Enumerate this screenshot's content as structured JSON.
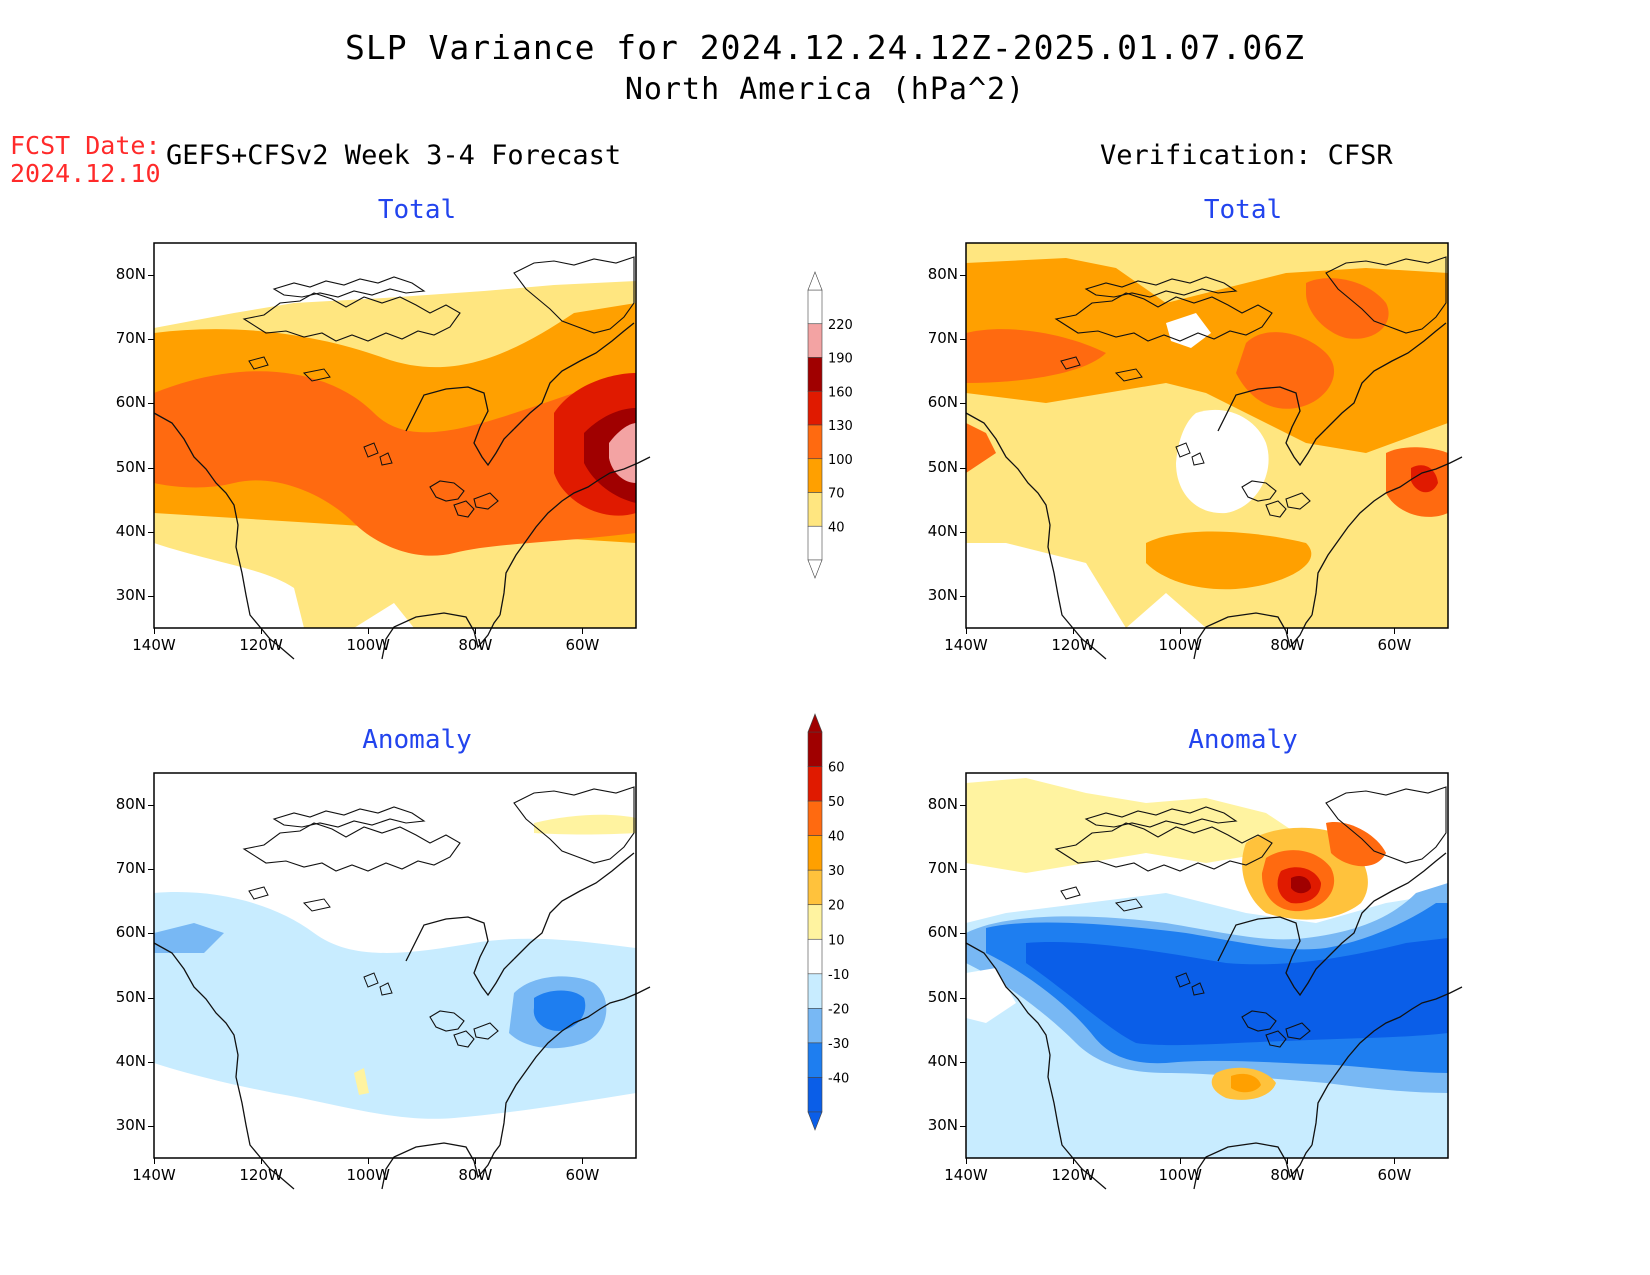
{
  "header": {
    "title": "SLP Variance for 2024.12.24.12Z-2025.01.07.06Z",
    "subtitle": "North America (hPa^2)",
    "fcst_date_label": "FCST Date:",
    "fcst_date_value": "2024.12.10",
    "left_column_title": "GEFS+CFSv2 Week 3-4 Forecast",
    "right_column_title": "Verification: CFSR"
  },
  "panels": {
    "forecast_total": {
      "title": "Total"
    },
    "verif_total": {
      "title": "Total"
    },
    "forecast_anomaly": {
      "title": "Anomaly"
    },
    "verif_anomaly": {
      "title": "Anomaly"
    }
  },
  "axes": {
    "lon_labels": [
      "140W",
      "120W",
      "100W",
      "80W",
      "60W"
    ],
    "lat_labels": [
      "80N",
      "70N",
      "60N",
      "50N",
      "40N",
      "30N"
    ],
    "lon_range": [
      -140,
      -50
    ],
    "lat_range": [
      25,
      85
    ]
  },
  "colorbars": {
    "total": {
      "levels": [
        "40",
        "70",
        "100",
        "130",
        "160",
        "190",
        "220"
      ],
      "colors": [
        "#ffffff",
        "#ffe680",
        "#ffa000",
        "#ff6a10",
        "#e01a00",
        "#a00000",
        "#f3a3a3",
        "#ffffff"
      ]
    },
    "anomaly": {
      "levels": [
        "-40",
        "-30",
        "-20",
        "-10",
        "10",
        "20",
        "30",
        "40",
        "50",
        "60"
      ],
      "colors": [
        "#0a5ee8",
        "#1e7ef0",
        "#78b8f4",
        "#c8ecff",
        "#ffffff",
        "#fff3a0",
        "#ffc23c",
        "#ffa000",
        "#ff6a10",
        "#e01a00",
        "#a00000"
      ]
    }
  }
}
